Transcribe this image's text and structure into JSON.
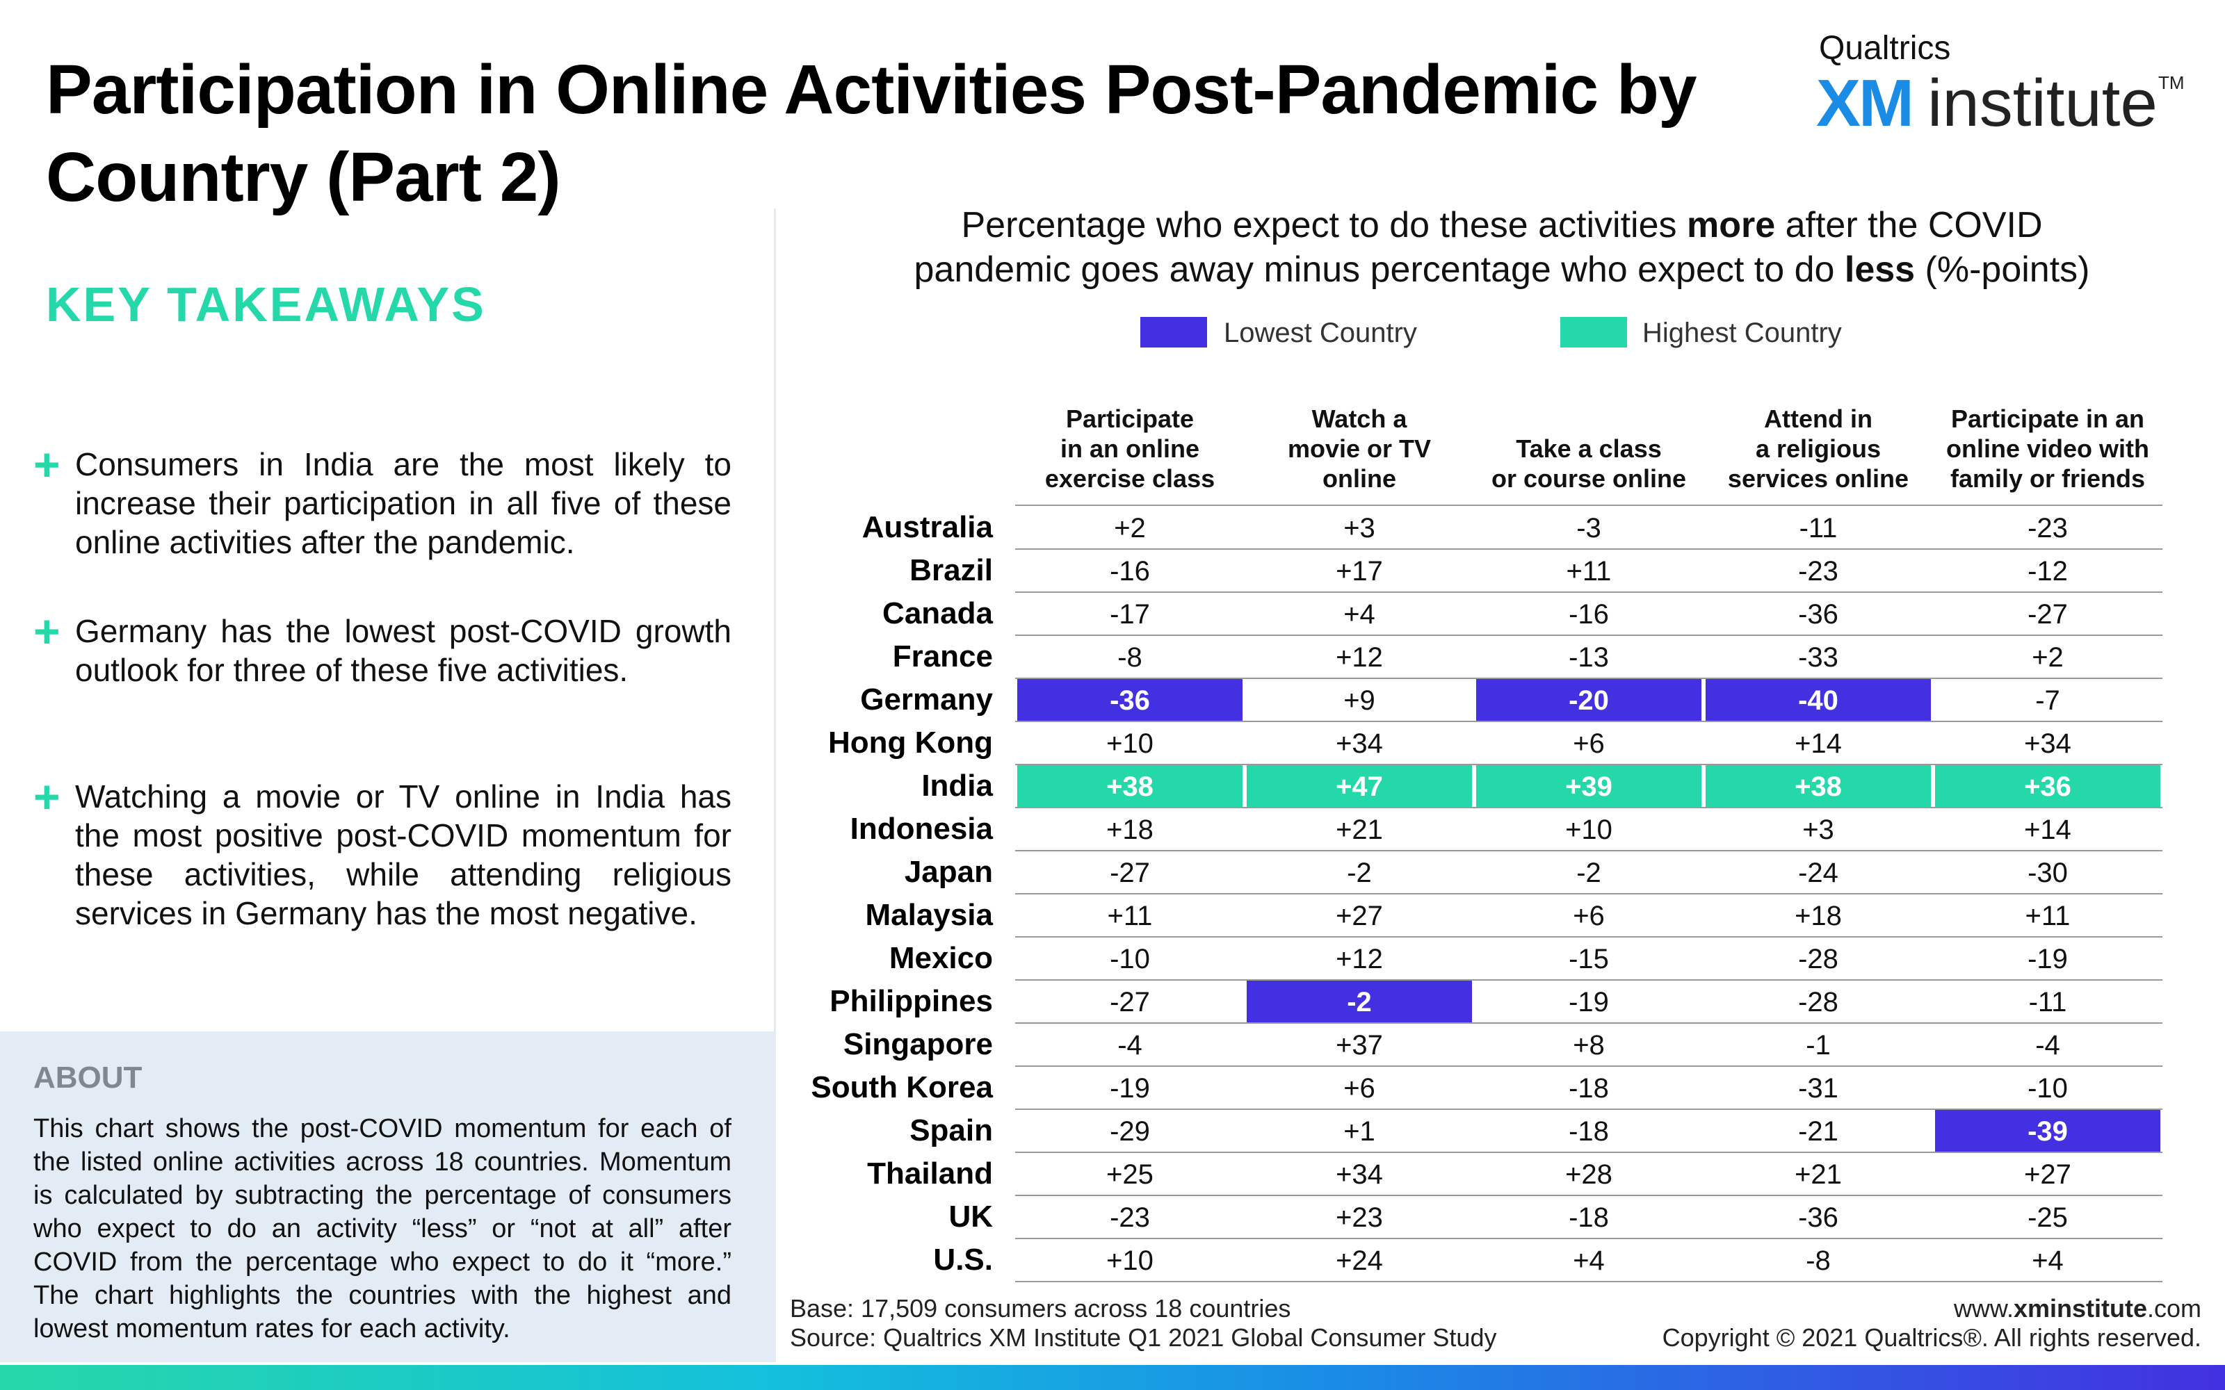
{
  "title": "Participation in Online Activities Post-Pandemic by Country (Part 2)",
  "brand": {
    "top": "Qualtrics",
    "xm": "XM",
    "institute": "institute",
    "tm": "TM"
  },
  "takeaways": {
    "title": "KEY TAKEAWAYS",
    "items": [
      "Consumers in India are the most likely to increase their participation in all five of these online activities after the pandemic.",
      "Germany has the lowest post-COVID growth outlook for three of these five activities.",
      "Watching a movie or TV online in India has the most positive post-COVID momentum for these activities, while attending religious services in Germany has the most negative."
    ]
  },
  "about": {
    "title": "ABOUT",
    "text": "This chart shows the post-COVID momentum for each of the listed online activities across 18 countries. Momentum is calculated by subtracting the percentage of consumers who expect to do an activity “less” or “not at all” after COVID from the percentage who expect to do it “more.” The chart highlights the countries with the highest and lowest momentum rates for each activity."
  },
  "subtitle": {
    "pre1": "Percentage who expect to do these activities ",
    "bold1": "more",
    "post1": " after the COVID",
    "pre2": "pandemic goes away minus percentage who expect to do ",
    "bold2": "less",
    "post2": " (%-points)"
  },
  "colors": {
    "lowest": "#4330e0",
    "highest": "#25d8a9"
  },
  "chart_data": {
    "type": "table",
    "legend": [
      {
        "label": "Lowest Country",
        "color": "#4330e0"
      },
      {
        "label": "Highest Country",
        "color": "#25d8a9"
      }
    ],
    "columns": [
      "Participate in an online exercise class",
      "Watch a movie or TV online",
      "Take a class or course online",
      "Attend in a religious services online",
      "Participate in an online video with family or friends"
    ],
    "column_lines": [
      [
        "Participate",
        "in an online",
        "exercise class"
      ],
      [
        "Watch a",
        "movie or TV",
        "online"
      ],
      [
        "Take a class",
        "or course online"
      ],
      [
        "Attend in",
        "a religious",
        "services online"
      ],
      [
        "Participate in an",
        "online video with",
        "family or friends"
      ]
    ],
    "rows": [
      {
        "country": "Australia",
        "values": [
          "+2",
          "+3",
          "-3",
          "-11",
          "-23"
        ]
      },
      {
        "country": "Brazil",
        "values": [
          "-16",
          "+17",
          "+11",
          "-23",
          "-12"
        ]
      },
      {
        "country": "Canada",
        "values": [
          "-17",
          "+4",
          "-16",
          "-36",
          "-27"
        ]
      },
      {
        "country": "France",
        "values": [
          "-8",
          "+12",
          "-13",
          "-33",
          "+2"
        ]
      },
      {
        "country": "Germany",
        "values": [
          "-36",
          "+9",
          "-20",
          "-40",
          "-7"
        ]
      },
      {
        "country": "Hong Kong",
        "values": [
          "+10",
          "+34",
          "+6",
          "+14",
          "+34"
        ]
      },
      {
        "country": "India",
        "values": [
          "+38",
          "+47",
          "+39",
          "+38",
          "+36"
        ]
      },
      {
        "country": "Indonesia",
        "values": [
          "+18",
          "+21",
          "+10",
          "+3",
          "+14"
        ]
      },
      {
        "country": "Japan",
        "values": [
          "-27",
          "-2",
          "-2",
          "-24",
          "-30"
        ]
      },
      {
        "country": "Malaysia",
        "values": [
          "+11",
          "+27",
          "+6",
          "+18",
          "+11"
        ]
      },
      {
        "country": "Mexico",
        "values": [
          "-10",
          "+12",
          "-15",
          "-28",
          "-19"
        ]
      },
      {
        "country": "Philippines",
        "values": [
          "-27",
          "-2",
          "-19",
          "-28",
          "-11"
        ]
      },
      {
        "country": "Singapore",
        "values": [
          "-4",
          "+37",
          "+8",
          "-1",
          "-4"
        ]
      },
      {
        "country": "South Korea",
        "values": [
          "-19",
          "+6",
          "-18",
          "-31",
          "-10"
        ]
      },
      {
        "country": "Spain",
        "values": [
          "-29",
          "+1",
          "-18",
          "-21",
          "-39"
        ]
      },
      {
        "country": "Thailand",
        "values": [
          "+25",
          "+34",
          "+28",
          "+21",
          "+27"
        ]
      },
      {
        "country": "UK",
        "values": [
          "-23",
          "+23",
          "-18",
          "-36",
          "-25"
        ]
      },
      {
        "country": "U.S.",
        "values": [
          "+10",
          "+24",
          "+4",
          "-8",
          "+4"
        ]
      }
    ],
    "highlights": {
      "lowest": [
        {
          "country": "Germany",
          "column": 0
        },
        {
          "country": "Philippines",
          "column": 1
        },
        {
          "country": "Germany",
          "column": 2
        },
        {
          "country": "Germany",
          "column": 3
        },
        {
          "country": "Spain",
          "column": 4
        }
      ],
      "highest": [
        {
          "country": "India",
          "column": 0
        },
        {
          "country": "India",
          "column": 1
        },
        {
          "country": "India",
          "column": 2
        },
        {
          "country": "India",
          "column": 3
        },
        {
          "country": "India",
          "column": 4
        }
      ]
    }
  },
  "footer": {
    "base": "Base: 17,509 consumers across 18 countries",
    "source": "Source: Qualtrics XM Institute Q1 2021 Global Consumer Study",
    "url_pre": "www.",
    "url_bold": "xminstitute",
    "url_post": ".com",
    "copyright": "Copyright © 2021 Qualtrics®. All rights reserved."
  }
}
